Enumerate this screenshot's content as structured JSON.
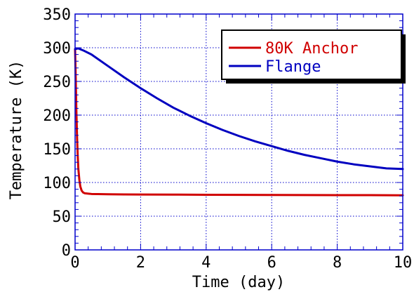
{
  "chart_data": {
    "type": "line",
    "title": "",
    "xlabel": "Time (day)",
    "ylabel": "Temperature (K)",
    "xlim": [
      0,
      10
    ],
    "ylim": [
      0,
      350
    ],
    "x_ticks": [
      0,
      2,
      4,
      6,
      8,
      10
    ],
    "y_ticks": [
      0,
      50,
      100,
      150,
      200,
      250,
      300,
      350
    ],
    "x_tick_labels": [
      "0",
      "2",
      "4",
      "6",
      "8",
      "10"
    ],
    "y_tick_labels": [
      "0",
      "50",
      "100",
      "150",
      "200",
      "250",
      "300",
      "350"
    ],
    "grid": true,
    "legend_position": "top-right",
    "series": [
      {
        "name": "80K Anchor",
        "color": "#d00000",
        "x": [
          0,
          0.02,
          0.04,
          0.06,
          0.08,
          0.1,
          0.13,
          0.16,
          0.2,
          0.25,
          0.3,
          0.4,
          0.5,
          0.7,
          1.0,
          1.5,
          2.0,
          3.0,
          4.0,
          5.0,
          6.0,
          7.0,
          8.0,
          9.0,
          10.0
        ],
        "y": [
          298,
          255,
          205,
          168,
          140,
          120,
          104,
          94,
          88,
          85,
          84,
          83.5,
          83,
          82.8,
          82.5,
          82.3,
          82.2,
          82,
          81.8,
          81.6,
          81.5,
          81.4,
          81.3,
          81.2,
          81
        ]
      },
      {
        "name": "Flange",
        "color": "#0000c0",
        "x": [
          0,
          0.1,
          0.25,
          0.5,
          1.0,
          1.5,
          2.0,
          2.5,
          3.0,
          3.5,
          4.0,
          4.5,
          5.0,
          5.5,
          6.0,
          6.5,
          7.0,
          7.5,
          8.0,
          8.5,
          9.0,
          9.5,
          10.0
        ],
        "y": [
          298,
          299,
          296,
          290,
          273,
          256,
          240,
          225,
          211,
          199,
          188,
          178,
          169,
          161,
          154,
          147,
          141,
          136,
          131,
          127,
          124,
          121,
          120
        ]
      }
    ]
  }
}
